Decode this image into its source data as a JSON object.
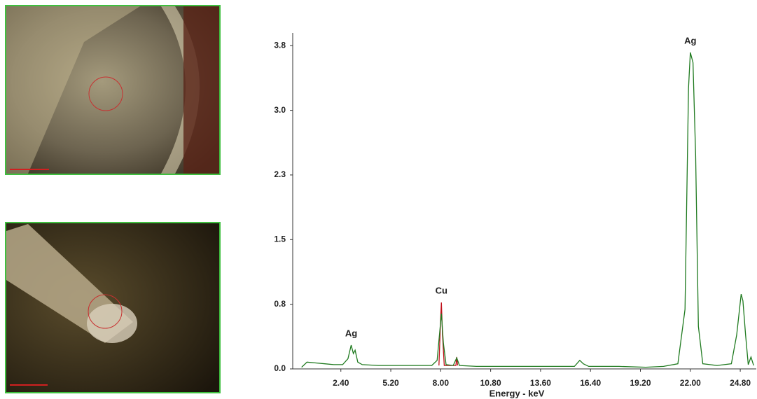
{
  "chart_data": {
    "type": "line",
    "x_label": "Energy - keV",
    "xlim": [
      -0.3,
      25.7
    ],
    "xticks": [
      {
        "value": 2.4,
        "label": "2.40"
      },
      {
        "value": 5.2,
        "label": "5.20"
      },
      {
        "value": 8.0,
        "label": "8.00"
      },
      {
        "value": 10.8,
        "label": "10.80"
      },
      {
        "value": 13.6,
        "label": "13.60"
      },
      {
        "value": 16.4,
        "label": "16.40"
      },
      {
        "value": 19.2,
        "label": "19.20"
      },
      {
        "value": 22.0,
        "label": "22.00"
      },
      {
        "value": 24.8,
        "label": "24.80"
      }
    ],
    "ylim": [
      0,
      3.95
    ],
    "yticks": [
      {
        "value": 0,
        "label": "0.0"
      },
      {
        "value": 0.76,
        "label": "0.8"
      },
      {
        "value": 1.52,
        "label": "1.5"
      },
      {
        "value": 2.28,
        "label": "2.3"
      },
      {
        "value": 3.04,
        "label": "3.0"
      },
      {
        "value": 3.8,
        "label": "3.8"
      }
    ],
    "series": [
      {
        "color": "#c0101a",
        "x": [
          7.9,
          8.0,
          8.04,
          8.1,
          8.2,
          8.85,
          8.9,
          8.95
        ],
        "values": [
          0.04,
          0.6,
          0.78,
          0.4,
          0.04,
          0.04,
          0.14,
          0.04
        ]
      },
      {
        "color": "#1f7a1f",
        "x": [
          0.2,
          0.5,
          1.0,
          1.5,
          2.0,
          2.5,
          2.8,
          2.98,
          3.1,
          3.2,
          3.35,
          3.6,
          4.5,
          5.5,
          6.5,
          7.5,
          7.8,
          7.95,
          8.04,
          8.15,
          8.3,
          8.7,
          8.9,
          9.05,
          10.0,
          12.0,
          14.0,
          15.5,
          15.8,
          16.0,
          16.3,
          18.0,
          19.5,
          20.5,
          21.3,
          21.7,
          21.9,
          22.0,
          22.15,
          22.3,
          22.45,
          22.7,
          23.5,
          24.3,
          24.6,
          24.85,
          24.95,
          25.1,
          25.25,
          25.4,
          25.55
        ],
        "values": [
          0.02,
          0.08,
          0.07,
          0.06,
          0.05,
          0.05,
          0.12,
          0.28,
          0.18,
          0.22,
          0.08,
          0.05,
          0.04,
          0.04,
          0.04,
          0.04,
          0.1,
          0.45,
          0.65,
          0.3,
          0.05,
          0.04,
          0.13,
          0.04,
          0.03,
          0.03,
          0.03,
          0.03,
          0.1,
          0.06,
          0.03,
          0.03,
          0.02,
          0.03,
          0.06,
          0.7,
          3.3,
          3.72,
          3.6,
          2.5,
          0.5,
          0.06,
          0.04,
          0.06,
          0.4,
          0.88,
          0.8,
          0.4,
          0.05,
          0.14,
          0.04
        ]
      }
    ],
    "annotations": [
      {
        "text": "Ag",
        "x": 2.98,
        "y": 0.28
      },
      {
        "text": "Cu",
        "x": 8.04,
        "y": 0.78
      },
      {
        "text": "Ag",
        "x": 22.0,
        "y": 3.72
      }
    ]
  }
}
